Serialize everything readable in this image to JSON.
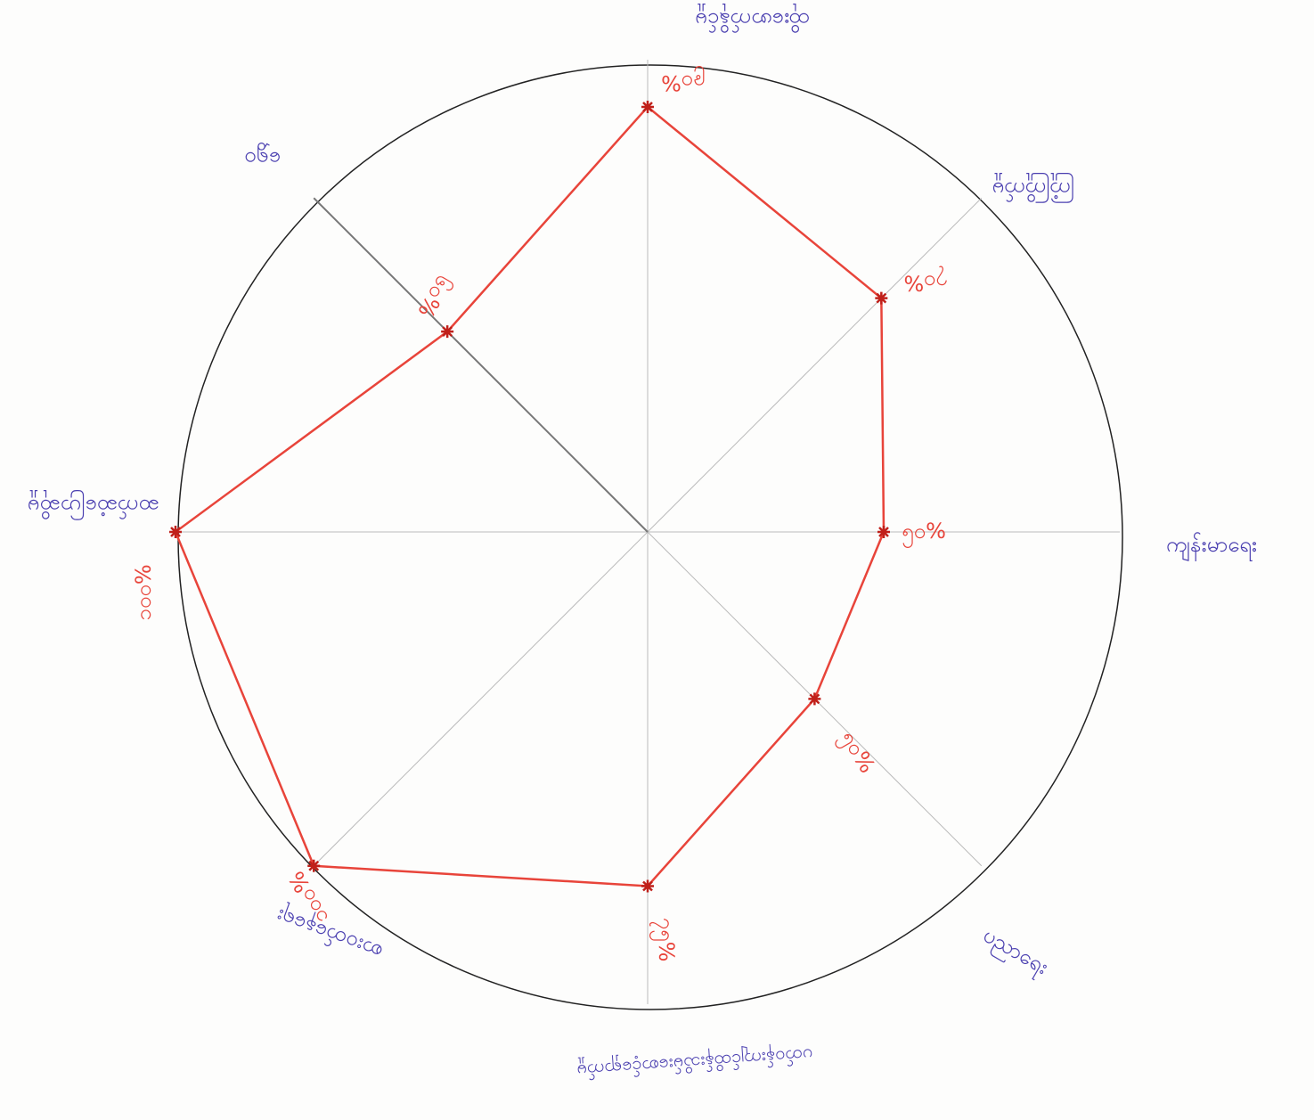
{
  "chart_data": {
    "type": "radar",
    "categories": [
      "ထိုးဖောက်နိုင်မှု",
      "ကြုံကြိုက်မှု",
      "ကျန်းမာရေး",
      "ပညာရေး",
      "ပတ်ဝန်းကျင်ထိန်းသိမ်းစောင့်ရှောက်မှု",
      "စားဝတ်နေရေး",
      "ဆက်ဆံပြောဆိုမှု",
      "ရွှေဝ"
    ],
    "values": [
      90,
      70,
      50,
      50,
      75,
      100,
      100,
      60
    ],
    "value_labels": [
      "၉၀%",
      "၇၀%",
      "၅၀%",
      "၅၀%",
      "၇၅%",
      "၁၀၀%",
      "၁၀၀%",
      "၆၀%"
    ],
    "rlim": [
      0,
      100
    ],
    "color": "#e8443a",
    "label_color": "#4a3fb0"
  }
}
